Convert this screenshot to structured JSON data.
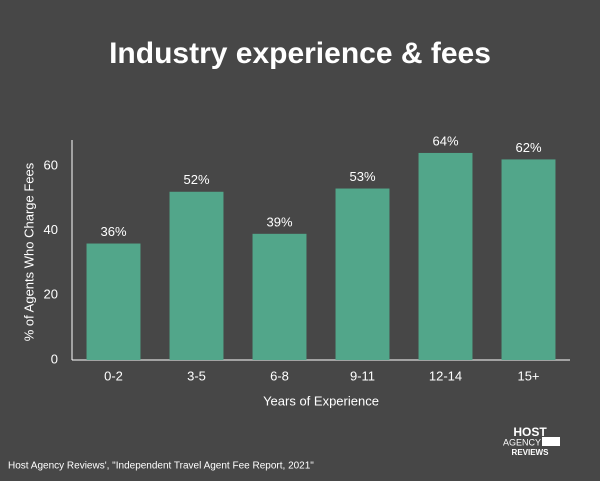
{
  "chart_data": {
    "type": "bar",
    "title": "Industry experience & fees",
    "x_label": "Years of Experience",
    "y_label": "% of Agents Who Charge Fees",
    "categories": [
      "0-2",
      "3-5",
      "6-8",
      "9-11",
      "12-14",
      "15+"
    ],
    "values": [
      36,
      52,
      39,
      53,
      64,
      62
    ],
    "value_labels": [
      "36%",
      "52%",
      "39%",
      "53%",
      "64%",
      "62%"
    ],
    "color": "#52a68a",
    "ylim": [
      0,
      68
    ],
    "yticks": [
      0,
      20,
      40,
      60
    ],
    "grid": false
  },
  "source": "Host Agency Reviews', \"Independent Travel Agent Fee Report, 2021\"",
  "logo": [
    "HOST",
    "AGENCY",
    "REVIEWS"
  ]
}
